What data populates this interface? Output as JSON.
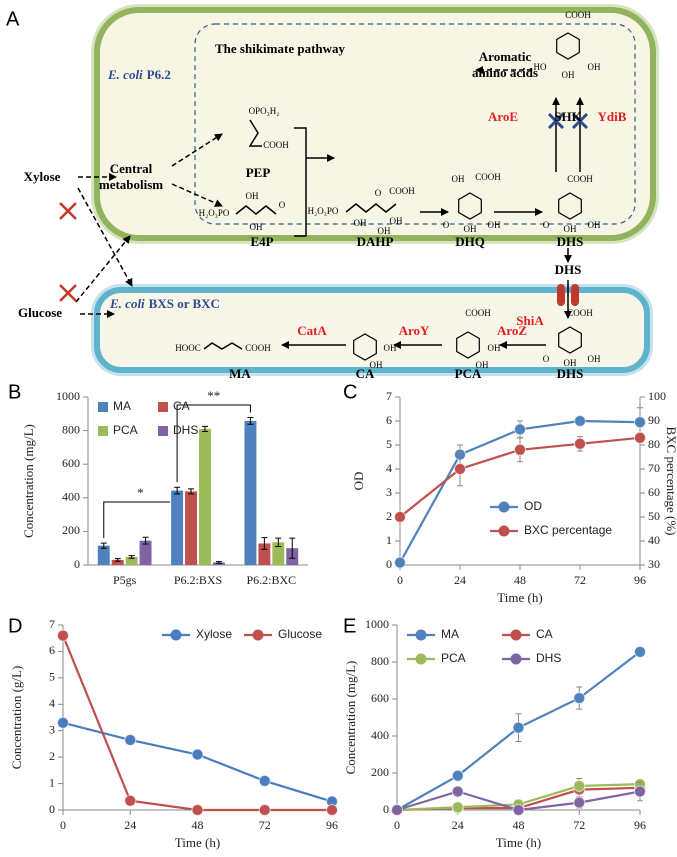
{
  "diagram": {
    "panel": "A",
    "host_top": {
      "species": "E. coli",
      "strain": "P6.2"
    },
    "host_bottom": {
      "species": "E. coli",
      "strain": "BXS or BXC"
    },
    "pathway_title": "The shikimate pathway",
    "substrates": [
      "Xylose",
      "Glucose"
    ],
    "central_metabolism": [
      "Central",
      "metabolism"
    ],
    "aromatic_amino_acids": [
      "Aromatic",
      "amino acids"
    ],
    "compounds": [
      {
        "name": "PEP",
        "groups": [
          "OPO₃H₂",
          "COOH"
        ]
      },
      {
        "name": "E4P",
        "groups": [
          "H₂O₃PO",
          "OH",
          "OH",
          "O"
        ]
      },
      {
        "name": "DAHP",
        "groups": [
          "H₂O₃PO",
          "OH",
          "COOH",
          "O",
          "OH",
          "OH"
        ]
      },
      {
        "name": "DHQ",
        "groups": [
          "COOH",
          "OH",
          "O",
          "OH",
          "OH"
        ]
      },
      {
        "name": "DHS",
        "groups": [
          "COOH",
          "O",
          "OH",
          "OH"
        ]
      },
      {
        "name": "SHK",
        "groups": [
          "COOH",
          "HO",
          "OH",
          "OH"
        ]
      },
      {
        "name": "DHS"
      },
      {
        "name": "DHS",
        "groups": [
          "COOH",
          "O",
          "OH",
          "OH"
        ]
      },
      {
        "name": "PCA",
        "groups": [
          "COOH",
          "OH",
          "OH"
        ]
      },
      {
        "name": "CA",
        "groups": [
          "OH",
          "OH"
        ]
      },
      {
        "name": "MA",
        "groups": [
          "HOOC",
          "COOH"
        ]
      }
    ],
    "enzymes": [
      "AroE",
      "YdiB",
      "ShiA",
      "AroZ",
      "AroY",
      "CatA"
    ]
  },
  "chart_data": [
    {
      "type": "bar",
      "panel": "B",
      "ylabel": "Concentration (mg/L)",
      "categories": [
        "P5gs",
        "P6.2:BXS",
        "P6.2:BXC"
      ],
      "series": [
        {
          "name": "MA",
          "color": "#4f81bd",
          "values": [
            115,
            443,
            858
          ],
          "errors": [
            15,
            20,
            20
          ]
        },
        {
          "name": "CA",
          "color": "#c0504d",
          "values": [
            30,
            438,
            128
          ],
          "errors": [
            8,
            15,
            35
          ]
        },
        {
          "name": "PCA",
          "color": "#9bbb59",
          "values": [
            48,
            810,
            135
          ],
          "errors": [
            8,
            15,
            25
          ]
        },
        {
          "name": "DHS",
          "color": "#8064a2",
          "values": [
            145,
            15,
            100
          ],
          "errors": [
            20,
            5,
            60
          ]
        }
      ],
      "ylim": [
        0,
        1000
      ],
      "yticks": [
        0,
        200,
        400,
        600,
        800,
        1000
      ],
      "legend": "upper left",
      "annotations": [
        "*",
        "**"
      ]
    },
    {
      "type": "line",
      "panel": "C",
      "ylabel": "OD",
      "y2label": "BXC percentage (%)",
      "xlabel": "Time (h)",
      "x": [
        0,
        24,
        48,
        72,
        96
      ],
      "series": [
        {
          "name": "OD",
          "color": "#4f81bd",
          "values": [
            0.1,
            4.6,
            5.65,
            6.0,
            5.95
          ],
          "errors": [
            0.05,
            0.4,
            0.35,
            0.15,
            0.6
          ]
        },
        {
          "name": "BXC percentage",
          "color": "#c0504d",
          "axis": "y2",
          "values": [
            50,
            70,
            78,
            80.5,
            83
          ],
          "errors": [
            0,
            7,
            5,
            3,
            2
          ]
        }
      ],
      "xlim": [
        0,
        96
      ],
      "xticks": [
        0,
        24,
        48,
        72,
        96
      ],
      "ylim": [
        0,
        7
      ],
      "yticks": [
        0,
        1,
        2,
        3,
        4,
        5,
        6,
        7
      ],
      "y2lim": [
        30,
        100
      ],
      "y2ticks": [
        30,
        40,
        50,
        60,
        70,
        80,
        90,
        100
      ],
      "legend": "lower right"
    },
    {
      "type": "line",
      "panel": "D",
      "ylabel": "Concentration (g/L)",
      "xlabel": "Time (h)",
      "x": [
        0,
        24,
        48,
        72,
        96
      ],
      "series": [
        {
          "name": "Xylose",
          "color": "#4a7dc0",
          "values": [
            3.3,
            2.65,
            2.1,
            1.1,
            0.32
          ]
        },
        {
          "name": "Glucose",
          "color": "#c0504d",
          "values": [
            6.6,
            0.35,
            0,
            0,
            0
          ]
        }
      ],
      "xlim": [
        0,
        96
      ],
      "xticks": [
        0,
        24,
        48,
        72,
        96
      ],
      "ylim": [
        0,
        7
      ],
      "yticks": [
        0,
        1,
        2,
        3,
        4,
        5,
        6,
        7
      ],
      "legend": "upper right"
    },
    {
      "type": "line",
      "panel": "E",
      "ylabel": "Concentration (mg/L)",
      "xlabel": "Time (h)",
      "x": [
        0,
        24,
        48,
        72,
        96
      ],
      "series": [
        {
          "name": "MA",
          "color": "#4f81bd",
          "values": [
            0,
            185,
            445,
            605,
            855
          ],
          "errors": [
            0,
            15,
            75,
            60,
            10
          ]
        },
        {
          "name": "CA",
          "color": "#c0504d",
          "values": [
            0,
            10,
            10,
            110,
            120
          ],
          "errors": [
            0,
            5,
            5,
            40,
            15
          ]
        },
        {
          "name": "PCA",
          "color": "#9bbb59",
          "values": [
            0,
            15,
            30,
            130,
            140
          ],
          "errors": [
            0,
            5,
            5,
            40,
            10
          ]
        },
        {
          "name": "DHS",
          "color": "#8064a2",
          "values": [
            0,
            100,
            0,
            40,
            100
          ],
          "errors": [
            0,
            10,
            10,
            30,
            50
          ]
        }
      ],
      "xlim": [
        0,
        96
      ],
      "xticks": [
        0,
        24,
        48,
        72,
        96
      ],
      "ylim": [
        0,
        1000
      ],
      "yticks": [
        0,
        200,
        400,
        600,
        800,
        1000
      ],
      "legend": "upper left"
    }
  ]
}
